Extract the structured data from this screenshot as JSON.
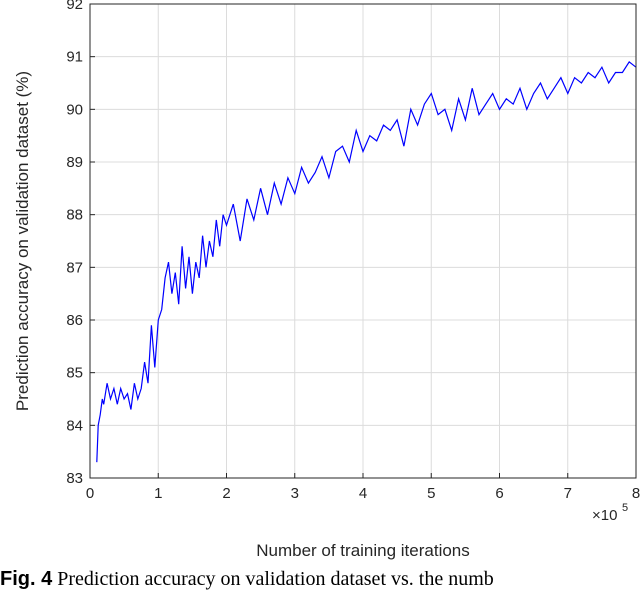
{
  "chart_data": {
    "type": "line",
    "xlabel": "Number of training iterations",
    "ylabel": "Prediction accuracy on validation dataset (%)",
    "x_multiplier_label": "×10",
    "x_multiplier_exp": "5",
    "xlim": [
      0,
      8
    ],
    "ylim": [
      83,
      92
    ],
    "xticks": [
      0,
      1,
      2,
      3,
      4,
      5,
      6,
      7,
      8
    ],
    "yticks": [
      83,
      84,
      85,
      86,
      87,
      88,
      89,
      90,
      91,
      92
    ],
    "grid": true,
    "line_color": "#0000ff",
    "series": [
      {
        "x": [
          0.1,
          0.12,
          0.15,
          0.18,
          0.2,
          0.25,
          0.3,
          0.35,
          0.4,
          0.45,
          0.5,
          0.55,
          0.6,
          0.65,
          0.7,
          0.75,
          0.8,
          0.85,
          0.9,
          0.95,
          1.0,
          1.05,
          1.1,
          1.15,
          1.2,
          1.25,
          1.3,
          1.35,
          1.4,
          1.45,
          1.5,
          1.55,
          1.6,
          1.65,
          1.7,
          1.75,
          1.8,
          1.85,
          1.9,
          1.95,
          2.0,
          2.1,
          2.2,
          2.3,
          2.4,
          2.5,
          2.6,
          2.7,
          2.8,
          2.9,
          3.0,
          3.1,
          3.2,
          3.3,
          3.4,
          3.5,
          3.6,
          3.7,
          3.8,
          3.9,
          4.0,
          4.1,
          4.2,
          4.3,
          4.4,
          4.5,
          4.6,
          4.7,
          4.8,
          4.9,
          5.0,
          5.1,
          5.2,
          5.3,
          5.4,
          5.5,
          5.6,
          5.7,
          5.8,
          5.9,
          6.0,
          6.1,
          6.2,
          6.3,
          6.4,
          6.5,
          6.6,
          6.7,
          6.8,
          6.9,
          7.0,
          7.1,
          7.2,
          7.3,
          7.4,
          7.5,
          7.6,
          7.7,
          7.8,
          7.9,
          8.0
        ],
        "y": [
          83.3,
          84.0,
          84.2,
          84.5,
          84.4,
          84.8,
          84.5,
          84.7,
          84.4,
          84.7,
          84.5,
          84.6,
          84.3,
          84.8,
          84.5,
          84.7,
          85.2,
          84.8,
          85.9,
          85.1,
          86.0,
          86.2,
          86.8,
          87.1,
          86.5,
          86.9,
          86.3,
          87.4,
          86.6,
          87.2,
          86.5,
          87.1,
          86.8,
          87.6,
          87.0,
          87.5,
          87.2,
          87.9,
          87.4,
          88.0,
          87.8,
          88.2,
          87.5,
          88.3,
          87.9,
          88.5,
          88.0,
          88.6,
          88.2,
          88.7,
          88.4,
          88.9,
          88.6,
          88.8,
          89.1,
          88.7,
          89.2,
          89.3,
          89.0,
          89.6,
          89.2,
          89.5,
          89.4,
          89.7,
          89.6,
          89.8,
          89.3,
          90.0,
          89.7,
          90.1,
          90.3,
          89.9,
          90.0,
          89.6,
          90.2,
          89.8,
          90.4,
          89.9,
          90.1,
          90.3,
          90.0,
          90.2,
          90.1,
          90.4,
          90.0,
          90.3,
          90.5,
          90.2,
          90.4,
          90.6,
          90.3,
          90.6,
          90.5,
          90.7,
          90.6,
          90.8,
          90.5,
          90.7,
          90.7,
          90.9,
          90.8
        ]
      }
    ]
  },
  "caption": {
    "label": "Fig. 4",
    "text": "Prediction accuracy on validation dataset vs. the numb"
  }
}
